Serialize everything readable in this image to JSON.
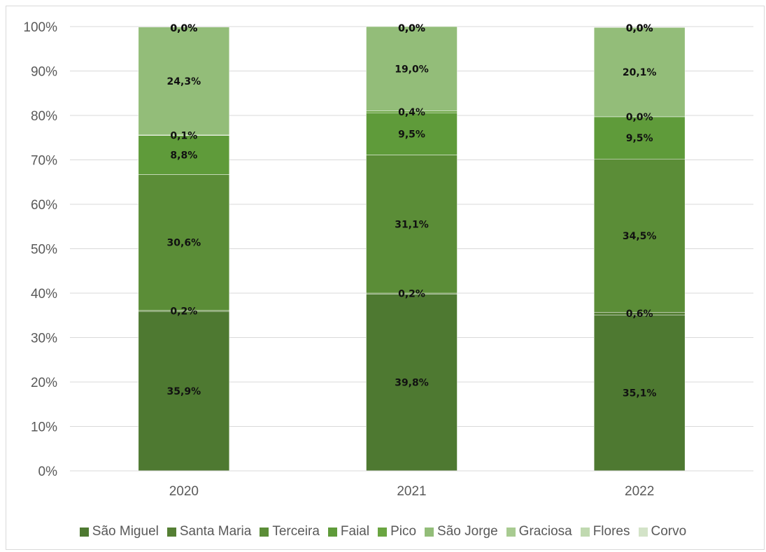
{
  "chart_data": {
    "type": "bar",
    "stacked": true,
    "percent_stacked": true,
    "categories": [
      "2020",
      "2021",
      "2022"
    ],
    "series": [
      {
        "name": "São Miguel",
        "color": "#4e7931",
        "values": [
          35.9,
          39.8,
          35.1
        ],
        "labels": [
          "35,9%",
          "39,8%",
          "35,1%"
        ]
      },
      {
        "name": "Santa Maria",
        "color": "#557f34",
        "values": [
          0.2,
          0.2,
          0.6
        ],
        "labels": [
          "0,2%",
          "0,2%",
          "0,6%"
        ]
      },
      {
        "name": "Terceira",
        "color": "#5b8d37",
        "values": [
          30.6,
          31.1,
          34.5
        ],
        "labels": [
          "30,6%",
          "31,1%",
          "34,5%"
        ]
      },
      {
        "name": "Faial",
        "color": "#5f9b3a",
        "values": [
          8.8,
          9.5,
          9.5
        ],
        "labels": [
          "8,8%",
          "9,5%",
          "9,5%"
        ]
      },
      {
        "name": "Pico",
        "color": "#6aa541",
        "values": [
          0.1,
          0.4,
          0.0
        ],
        "labels": [
          "0,1%",
          "0,4%",
          "0,0%"
        ]
      },
      {
        "name": "São Jorge",
        "color": "#93bd79",
        "values": [
          24.3,
          19.0,
          20.1
        ],
        "labels": [
          "24,3%",
          "19,0%",
          "20,1%"
        ]
      },
      {
        "name": "Graciosa",
        "color": "#a8cb91",
        "values": [
          0.0,
          0.0,
          0.0
        ],
        "labels": [
          "0,0%",
          "0,0%",
          "0,0%"
        ]
      },
      {
        "name": "Flores",
        "color": "#c0d9b0",
        "values": [
          0.0,
          0.0,
          0.0
        ],
        "labels": [
          "0,0%",
          "0,0%",
          "0,0%"
        ]
      },
      {
        "name": "Corvo",
        "color": "#d3e3c8",
        "values": [
          0.0,
          0.0,
          0.0
        ],
        "labels": [
          "0,0%",
          "0,0%",
          "0,0%"
        ]
      }
    ],
    "ylim": [
      0,
      100
    ],
    "yticks": [
      "0%",
      "10%",
      "20%",
      "30%",
      "40%",
      "50%",
      "60%",
      "70%",
      "80%",
      "90%",
      "100%"
    ],
    "grid": true,
    "legend_position": "bottom",
    "title": "",
    "xlabel": "",
    "ylabel": ""
  }
}
